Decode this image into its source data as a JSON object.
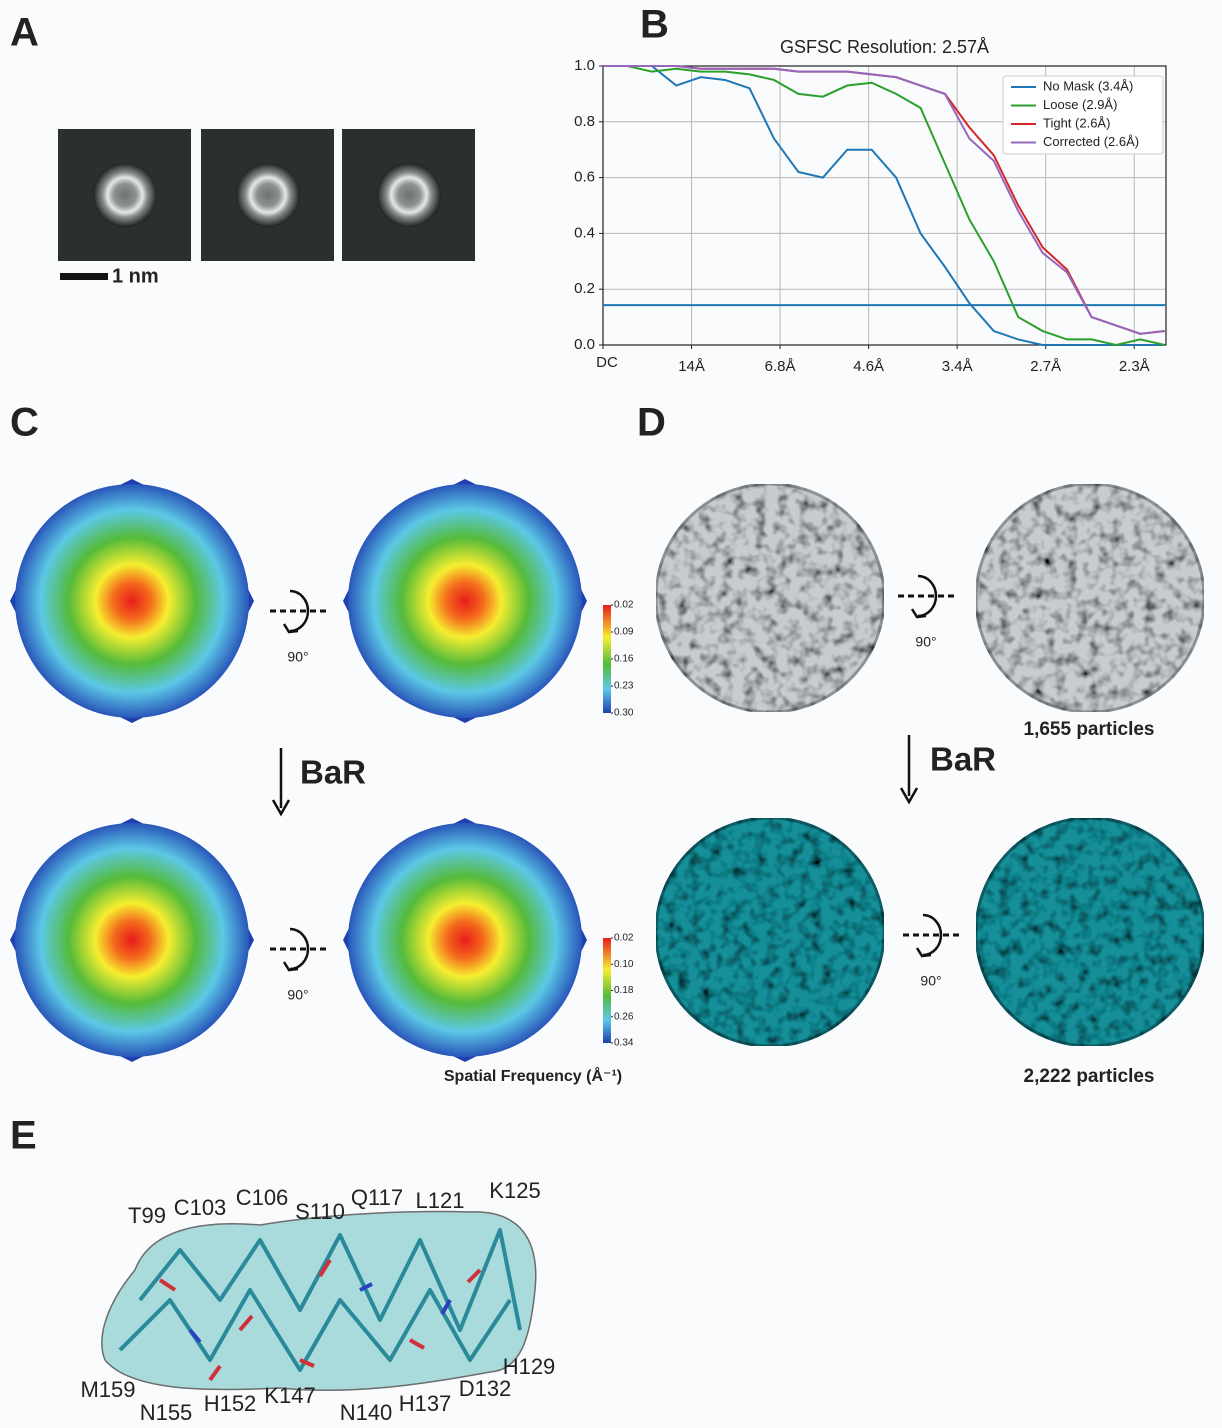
{
  "panel_labels": [
    "A",
    "B",
    "C",
    "D",
    "E"
  ],
  "panel_a": {
    "scale_bar": "1 nm"
  },
  "chart_data": {
    "type": "line",
    "title": "GSFSC Resolution: 2.57Å",
    "x": [
      0,
      0.02,
      0.04,
      0.06,
      0.08,
      0.1,
      0.12,
      0.14,
      0.16,
      0.18,
      0.2,
      0.22,
      0.24,
      0.26,
      0.28,
      0.3,
      0.32,
      0.34,
      0.36,
      0.38,
      0.4,
      0.42,
      0.44,
      0.46
    ],
    "series": [
      {
        "name": "No Mask (3.4Å)",
        "color": "#1f77b4",
        "values": [
          1,
          1,
          1,
          0.93,
          0.96,
          0.95,
          0.92,
          0.74,
          0.62,
          0.6,
          0.7,
          0.7,
          0.6,
          0.4,
          0.28,
          0.15,
          0.05,
          0.02,
          0,
          0,
          0,
          0,
          0,
          0
        ]
      },
      {
        "name": "Loose (2.9Å)",
        "color": "#2ca02c",
        "values": [
          1,
          1,
          0.98,
          0.99,
          0.98,
          0.98,
          0.97,
          0.95,
          0.9,
          0.89,
          0.93,
          0.94,
          0.9,
          0.85,
          0.65,
          0.45,
          0.3,
          0.1,
          0.05,
          0.02,
          0.02,
          0,
          0.02,
          0
        ]
      },
      {
        "name": "Tight (2.6Å)",
        "color": "#d62728",
        "values": [
          1,
          1,
          1,
          1,
          0.99,
          0.99,
          0.99,
          0.99,
          0.98,
          0.98,
          0.98,
          0.97,
          0.96,
          0.93,
          0.9,
          0.78,
          0.68,
          0.5,
          0.35,
          0.27,
          0.1,
          0.07,
          0.04,
          0.05
        ]
      },
      {
        "name": "Corrected (2.6Å)",
        "color": "#9467bd",
        "values": [
          1,
          1,
          1,
          1,
          0.99,
          0.99,
          0.99,
          0.99,
          0.98,
          0.98,
          0.98,
          0.97,
          0.96,
          0.93,
          0.9,
          0.74,
          0.66,
          0.48,
          0.33,
          0.26,
          0.1,
          0.07,
          0.04,
          0.05
        ]
      }
    ],
    "threshold": 0.143,
    "threshold_color": "#1f77b4",
    "xlim": [
      0,
      0.461
    ],
    "ylim": [
      0,
      1
    ],
    "xticks": [
      {
        "value": 0,
        "label": "DC"
      },
      {
        "value": 0.0725,
        "label": "14Å"
      },
      {
        "value": 0.145,
        "label": "6.8Å"
      },
      {
        "value": 0.2175,
        "label": "4.6Å"
      },
      {
        "value": 0.29,
        "label": "3.4Å"
      },
      {
        "value": 0.3625,
        "label": "2.7Å"
      },
      {
        "value": 0.435,
        "label": "2.3Å"
      }
    ],
    "yticks": [
      {
        "value": 0,
        "label": "0.0"
      },
      0.2,
      0.4,
      0.6,
      0.8,
      {
        "value": 1,
        "label": "1.0"
      }
    ],
    "grid": true,
    "legend": "upper right"
  },
  "panel_c": {
    "rotation": "90°",
    "arrow_label": "BaR",
    "colorbar_top": [
      0.02,
      0.09,
      0.16,
      0.23,
      {
        "value": 0.3,
        "label": "0.30"
      }
    ],
    "colorbar_bottom": [
      0.02,
      {
        "value": 0.1,
        "label": "0.10"
      },
      0.18,
      0.26,
      0.34
    ],
    "colorbar_title": "Spatial Frequency (Å⁻¹)"
  },
  "panel_d": {
    "rotation": "90°",
    "arrow_label": "BaR",
    "particles_before": "1,655 particles",
    "particles_after": "2,222 particles"
  },
  "panel_e": {
    "residues": [
      "T99",
      "C103",
      "C106",
      "S110",
      "Q117",
      "L121",
      "K125",
      "H129",
      "D132",
      "H137",
      "N140",
      "K147",
      "H152",
      "N155",
      "M159"
    ]
  }
}
